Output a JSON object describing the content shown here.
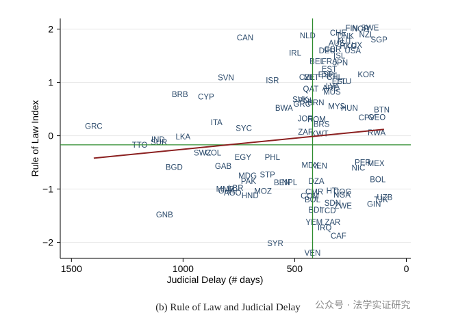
{
  "chart_data": {
    "type": "scatter",
    "title": "",
    "xlabel": "Judicial Delay (# days)",
    "ylabel": "Rule of Law Index",
    "xlim": [
      1550,
      -20
    ],
    "ylim": [
      -2.3,
      2.2
    ],
    "x_reversed": true,
    "x_ticks": [
      1500,
      1000,
      500,
      0
    ],
    "y_ticks": [
      2,
      1,
      0,
      -1,
      -2
    ],
    "grid": "horizontal",
    "reference_lines": {
      "vertical_x": 420,
      "horizontal_y": -0.17
    },
    "fit_line": {
      "x": [
        1400,
        100
      ],
      "y": [
        -0.42,
        0.12
      ]
    },
    "colors": {
      "labels": "#2b4a6b",
      "fit": "#8b2020",
      "reference": "#2e8b2e",
      "grid": "#e6e6e6"
    },
    "points": [
      {
        "label": "FIN",
        "x": 245,
        "y": 2.02
      },
      {
        "label": "SWE",
        "x": 163,
        "y": 2.03
      },
      {
        "label": "NOR",
        "x": 205,
        "y": 2.01
      },
      {
        "label": "CHE",
        "x": 305,
        "y": 1.93
      },
      {
        "label": "DNK",
        "x": 272,
        "y": 1.87
      },
      {
        "label": "NZL",
        "x": 178,
        "y": 1.9
      },
      {
        "label": "SGP",
        "x": 122,
        "y": 1.8
      },
      {
        "label": "NLD",
        "x": 442,
        "y": 1.88
      },
      {
        "label": "CAN",
        "x": 722,
        "y": 1.84
      },
      {
        "label": "AUS",
        "x": 312,
        "y": 1.74
      },
      {
        "label": "AUT",
        "x": 278,
        "y": 1.78
      },
      {
        "label": "HKG",
        "x": 260,
        "y": 1.68
      },
      {
        "label": "LUX",
        "x": 232,
        "y": 1.7
      },
      {
        "label": "USA",
        "x": 240,
        "y": 1.6
      },
      {
        "label": "DEU",
        "x": 355,
        "y": 1.6
      },
      {
        "label": "GBR",
        "x": 330,
        "y": 1.62
      },
      {
        "label": "IRL",
        "x": 498,
        "y": 1.55
      },
      {
        "label": "ISL",
        "x": 300,
        "y": 1.5
      },
      {
        "label": "BEL",
        "x": 400,
        "y": 1.4
      },
      {
        "label": "FRA",
        "x": 344,
        "y": 1.4
      },
      {
        "label": "JPN",
        "x": 295,
        "y": 1.37
      },
      {
        "label": "EST",
        "x": 345,
        "y": 1.25
      },
      {
        "label": "CZE",
        "x": 445,
        "y": 1.1
      },
      {
        "label": "MLT",
        "x": 425,
        "y": 1.1
      },
      {
        "label": "SVN",
        "x": 808,
        "y": 1.09
      },
      {
        "label": "ESP",
        "x": 360,
        "y": 1.15
      },
      {
        "label": "PRT",
        "x": 345,
        "y": 1.12
      },
      {
        "label": "CHL",
        "x": 322,
        "y": 1.1
      },
      {
        "label": "KOR",
        "x": 180,
        "y": 1.15
      },
      {
        "label": "ISR",
        "x": 600,
        "y": 1.04
      },
      {
        "label": "ESL",
        "x": 300,
        "y": 1.02
      },
      {
        "label": "LTU",
        "x": 278,
        "y": 1.02
      },
      {
        "label": "ARE",
        "x": 340,
        "y": 0.9
      },
      {
        "label": "LVA",
        "x": 330,
        "y": 0.93
      },
      {
        "label": "QAT",
        "x": 428,
        "y": 0.88
      },
      {
        "label": "MUS",
        "x": 333,
        "y": 0.82
      },
      {
        "label": "BRB",
        "x": 1014,
        "y": 0.78
      },
      {
        "label": "CYP",
        "x": 897,
        "y": 0.73
      },
      {
        "label": "SVK",
        "x": 475,
        "y": 0.68
      },
      {
        "label": "POL",
        "x": 450,
        "y": 0.66
      },
      {
        "label": "GRC",
        "x": 467,
        "y": 0.6
      },
      {
        "label": "BRN",
        "x": 405,
        "y": 0.62
      },
      {
        "label": "HUN",
        "x": 255,
        "y": 0.52
      },
      {
        "label": "MYS",
        "x": 312,
        "y": 0.55
      },
      {
        "label": "BWA",
        "x": 548,
        "y": 0.52
      },
      {
        "label": "GEO",
        "x": 132,
        "y": 0.35
      },
      {
        "label": "BTN",
        "x": 110,
        "y": 0.49
      },
      {
        "label": "CPV",
        "x": 178,
        "y": 0.34
      },
      {
        "label": "JOR",
        "x": 452,
        "y": 0.32
      },
      {
        "label": "ROM",
        "x": 402,
        "y": 0.31
      },
      {
        "label": "ITA",
        "x": 850,
        "y": 0.25
      },
      {
        "label": "BRS",
        "x": 380,
        "y": 0.22
      },
      {
        "label": "SYC",
        "x": 728,
        "y": 0.14
      },
      {
        "label": "GRC",
        "x": 1400,
        "y": 0.18
      },
      {
        "label": "ZAF",
        "x": 452,
        "y": 0.07
      },
      {
        "label": "KWT",
        "x": 388,
        "y": 0.04
      },
      {
        "label": "RWA",
        "x": 133,
        "y": 0.06
      },
      {
        "label": "LKA",
        "x": 1000,
        "y": -0.02
      },
      {
        "label": "IND",
        "x": 1112,
        "y": -0.07
      },
      {
        "label": "SUR",
        "x": 1108,
        "y": -0.12
      },
      {
        "label": "TTO",
        "x": 1194,
        "y": -0.17
      },
      {
        "label": "SWZ",
        "x": 913,
        "y": -0.32
      },
      {
        "label": "COL",
        "x": 865,
        "y": -0.32
      },
      {
        "label": "EGY",
        "x": 732,
        "y": -0.4
      },
      {
        "label": "PHL",
        "x": 600,
        "y": -0.4
      },
      {
        "label": "GAB",
        "x": 820,
        "y": -0.57
      },
      {
        "label": "BGD",
        "x": 1040,
        "y": -0.59
      },
      {
        "label": "MDX",
        "x": 430,
        "y": -0.55
      },
      {
        "label": "KEN",
        "x": 390,
        "y": -0.56
      },
      {
        "label": "NIC",
        "x": 215,
        "y": -0.6
      },
      {
        "label": "PER",
        "x": 195,
        "y": -0.5
      },
      {
        "label": "MEX",
        "x": 136,
        "y": -0.52
      },
      {
        "label": "MDG",
        "x": 711,
        "y": -0.75
      },
      {
        "label": "STP",
        "x": 622,
        "y": -0.73
      },
      {
        "label": "PAK",
        "x": 707,
        "y": -0.85
      },
      {
        "label": "BEN",
        "x": 557,
        "y": -0.88
      },
      {
        "label": "NPL",
        "x": 523,
        "y": -0.87
      },
      {
        "label": "DZA",
        "x": 403,
        "y": -0.85
      },
      {
        "label": "BOL",
        "x": 128,
        "y": -0.82
      },
      {
        "label": "MMR",
        "x": 810,
        "y": -1.0
      },
      {
        "label": "LBR",
        "x": 764,
        "y": -0.98
      },
      {
        "label": "GHA",
        "x": 805,
        "y": -1.03
      },
      {
        "label": "AGO",
        "x": 778,
        "y": -1.07
      },
      {
        "label": "MOZ",
        "x": 642,
        "y": -1.04
      },
      {
        "label": "HND",
        "x": 700,
        "y": -1.12
      },
      {
        "label": "CMR",
        "x": 412,
        "y": -1.05
      },
      {
        "label": "HTI",
        "x": 330,
        "y": -1.03
      },
      {
        "label": "COG",
        "x": 286,
        "y": -1.05
      },
      {
        "label": "NGA",
        "x": 288,
        "y": -1.11
      },
      {
        "label": "COM",
        "x": 432,
        "y": -1.13
      },
      {
        "label": "BOL",
        "x": 420,
        "y": -1.2
      },
      {
        "label": "UZB",
        "x": 97,
        "y": -1.15
      },
      {
        "label": "TJK",
        "x": 113,
        "y": -1.2
      },
      {
        "label": "SDN",
        "x": 330,
        "y": -1.26
      },
      {
        "label": "ZWE",
        "x": 283,
        "y": -1.31
      },
      {
        "label": "GIN",
        "x": 145,
        "y": -1.28
      },
      {
        "label": "BDI",
        "x": 409,
        "y": -1.39
      },
      {
        "label": "TCD",
        "x": 352,
        "y": -1.4
      },
      {
        "label": "GNB",
        "x": 1083,
        "y": -1.48
      },
      {
        "label": "YEM",
        "x": 413,
        "y": -1.62
      },
      {
        "label": "ZAR",
        "x": 330,
        "y": -1.62
      },
      {
        "label": "IRQ",
        "x": 366,
        "y": -1.72
      },
      {
        "label": "CAF",
        "x": 304,
        "y": -1.88
      },
      {
        "label": "SYR",
        "x": 587,
        "y": -2.02
      },
      {
        "label": "VEN",
        "x": 420,
        "y": -2.2
      }
    ]
  },
  "caption": "(b) Rule of Law and Judicial Delay",
  "watermark": "公众号 · 法学实证研究"
}
